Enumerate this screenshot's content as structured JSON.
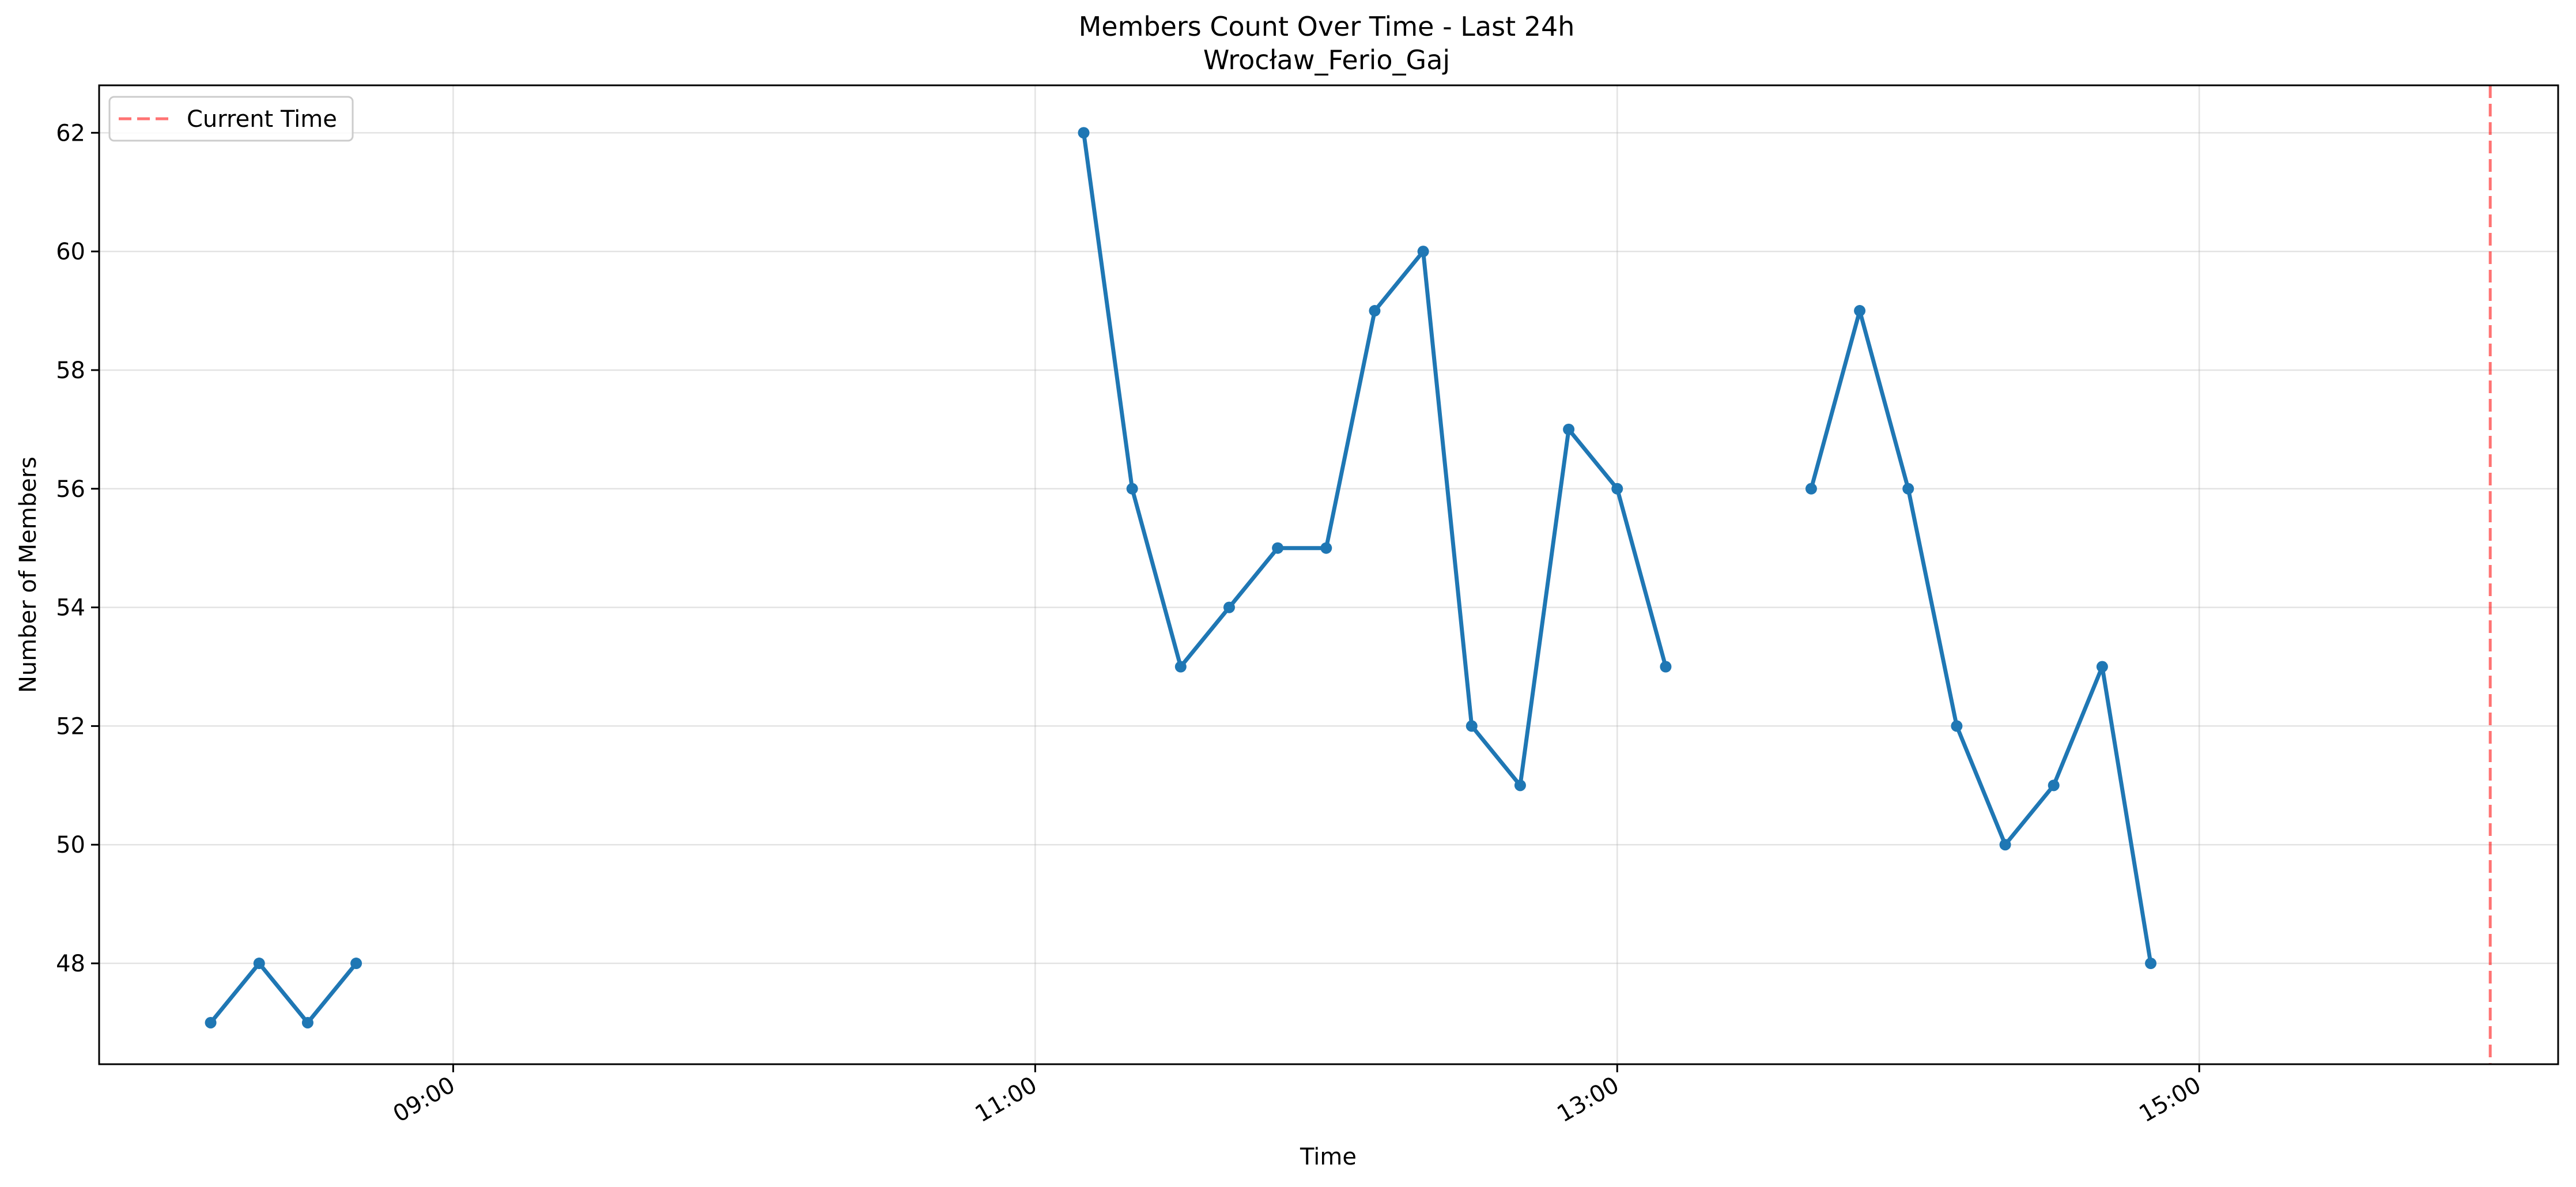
{
  "title": "Members Count Over Time - Last 24h",
  "subtitle": "Wrocław_Ferio_Gaj",
  "chart_data": {
    "type": "line",
    "title": "Members Count Over Time - Last 24h",
    "subtitle": "Wrocław_Ferio_Gaj",
    "xlabel": "Time",
    "ylabel": "Number of Members",
    "xlim": [
      "07:47",
      "16:14"
    ],
    "ylim": [
      46.3,
      62.8
    ],
    "x_ticks": [
      "09:00",
      "11:00",
      "13:00",
      "15:00"
    ],
    "y_ticks": [
      48,
      50,
      52,
      54,
      56,
      58,
      60,
      62
    ],
    "grid": true,
    "legend_location": "upper left",
    "series": [
      {
        "color": "#1f77b4",
        "segments": [
          {
            "x": [
              "08:10",
              "08:20",
              "08:30",
              "08:40"
            ],
            "values": [
              47,
              48,
              47,
              48
            ]
          },
          {
            "x": [
              "11:10",
              "11:20",
              "11:30",
              "11:40",
              "11:50",
              "12:00",
              "12:10",
              "12:20",
              "12:30",
              "12:40",
              "12:50",
              "13:00",
              "13:10"
            ],
            "values": [
              62,
              56,
              53,
              54,
              55,
              55,
              59,
              60,
              52,
              51,
              57,
              56,
              53
            ]
          },
          {
            "x": [
              "13:40",
              "13:50",
              "14:00",
              "14:10",
              "14:20",
              "14:30",
              "14:40",
              "14:50"
            ],
            "values": [
              56,
              59,
              56,
              52,
              50,
              51,
              53,
              48
            ]
          }
        ]
      }
    ],
    "reference_lines": [
      {
        "name": "Current Time",
        "x": "16:00",
        "color": "#ff0000",
        "style": "dashed"
      }
    ],
    "legend": [
      {
        "label": "Current Time",
        "color": "#ff0000",
        "style": "dashed"
      }
    ]
  }
}
